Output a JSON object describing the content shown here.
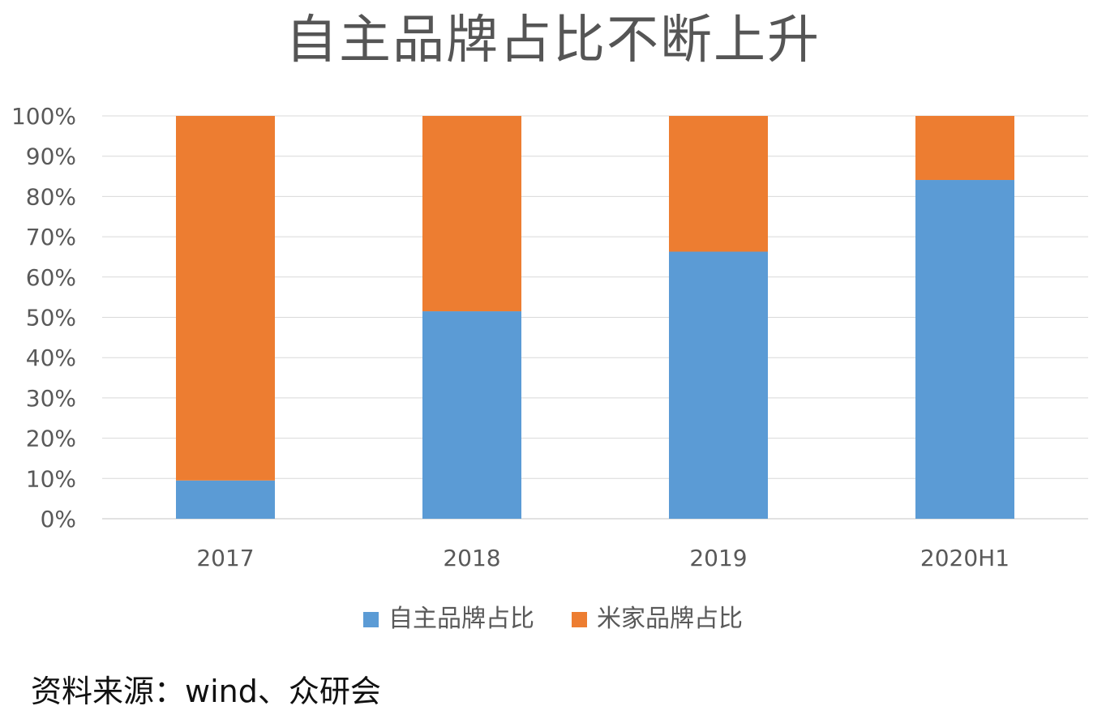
{
  "chart_data": {
    "type": "bar",
    "stacked": true,
    "title": "自主品牌占比不断上升",
    "categories": [
      "2017",
      "2018",
      "2019",
      "2020H1"
    ],
    "series": [
      {
        "name": "自主品牌占比",
        "values": [
          9.5,
          51.5,
          66.3,
          84.1
        ],
        "color": "#5B9BD5"
      },
      {
        "name": "米家品牌占比",
        "values": [
          90.5,
          48.5,
          33.7,
          15.9
        ],
        "color": "#ED7D31"
      }
    ],
    "ylim": [
      0,
      100
    ],
    "yticks": [
      "0%",
      "10%",
      "20%",
      "30%",
      "40%",
      "50%",
      "60%",
      "70%",
      "80%",
      "90%",
      "100%"
    ],
    "grid": true,
    "legend_position": "bottom"
  },
  "source_note": "资料来源：wind、众研会",
  "colors": {
    "gridline": "#D9D9D9",
    "axis_text": "#595959"
  }
}
